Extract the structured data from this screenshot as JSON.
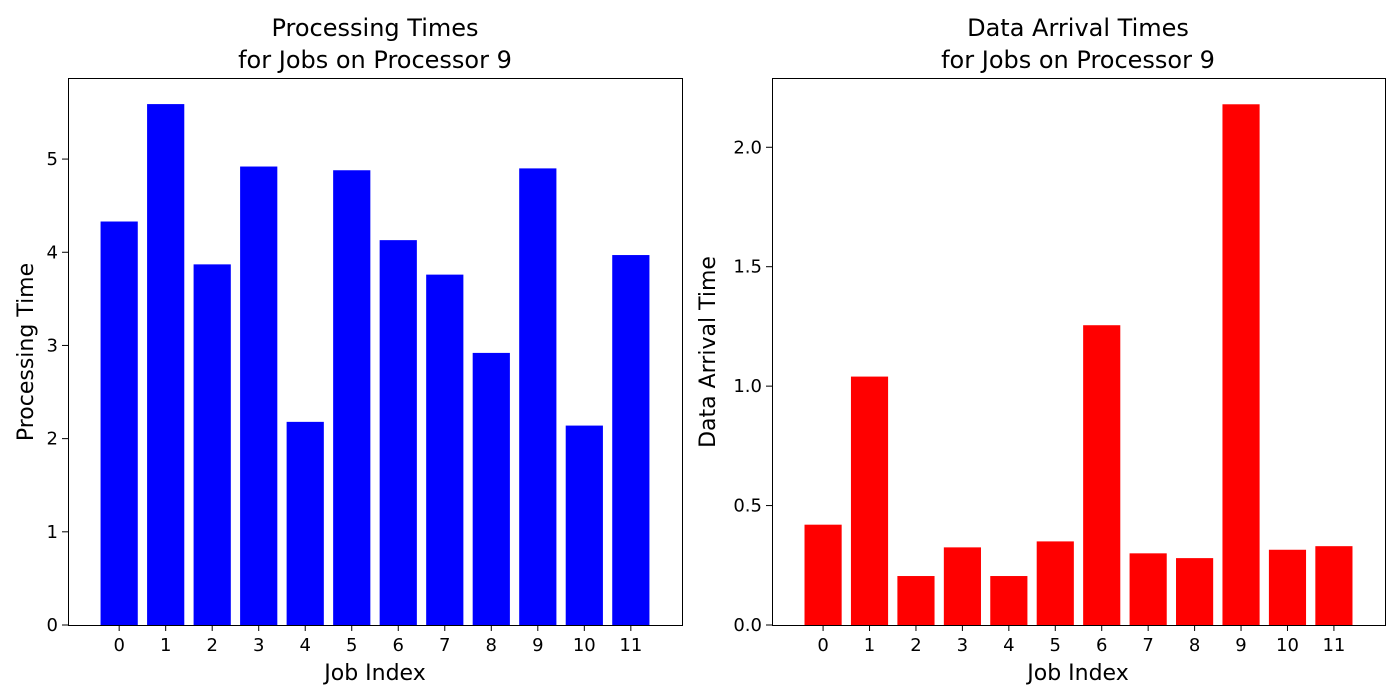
{
  "chart_data": [
    {
      "type": "bar",
      "title_lines": [
        "Processing Times",
        "for Jobs on Processor 9"
      ],
      "xlabel": "Job Index",
      "ylabel": "Processing Time",
      "categories": [
        "0",
        "1",
        "2",
        "3",
        "4",
        "5",
        "6",
        "7",
        "8",
        "9",
        "10",
        "11"
      ],
      "values": [
        4.33,
        5.59,
        3.87,
        4.92,
        2.18,
        4.88,
        4.13,
        3.76,
        2.92,
        4.9,
        2.14,
        3.97
      ],
      "ylim": [
        0,
        5.87
      ],
      "yticks": [
        0,
        1,
        2,
        3,
        4,
        5
      ],
      "ytick_labels": [
        "0",
        "1",
        "2",
        "3",
        "4",
        "5"
      ],
      "color": "#0000ff",
      "grid": false
    },
    {
      "type": "bar",
      "title_lines": [
        "Data Arrival Times",
        "for Jobs on Processor 9"
      ],
      "xlabel": "Job Index",
      "ylabel": "Data Arrival Time",
      "categories": [
        "0",
        "1",
        "2",
        "3",
        "4",
        "5",
        "6",
        "7",
        "8",
        "9",
        "10",
        "11"
      ],
      "values": [
        0.42,
        1.04,
        0.205,
        0.325,
        0.205,
        0.35,
        1.255,
        0.3,
        0.28,
        2.18,
        0.315,
        0.33
      ],
      "ylim": [
        0,
        2.29
      ],
      "yticks": [
        0,
        0.5,
        1.0,
        1.5,
        2.0
      ],
      "ytick_labels": [
        "0.0",
        "0.5",
        "1.0",
        "1.5",
        "2.0"
      ],
      "color": "#ff0000",
      "grid": false
    }
  ]
}
